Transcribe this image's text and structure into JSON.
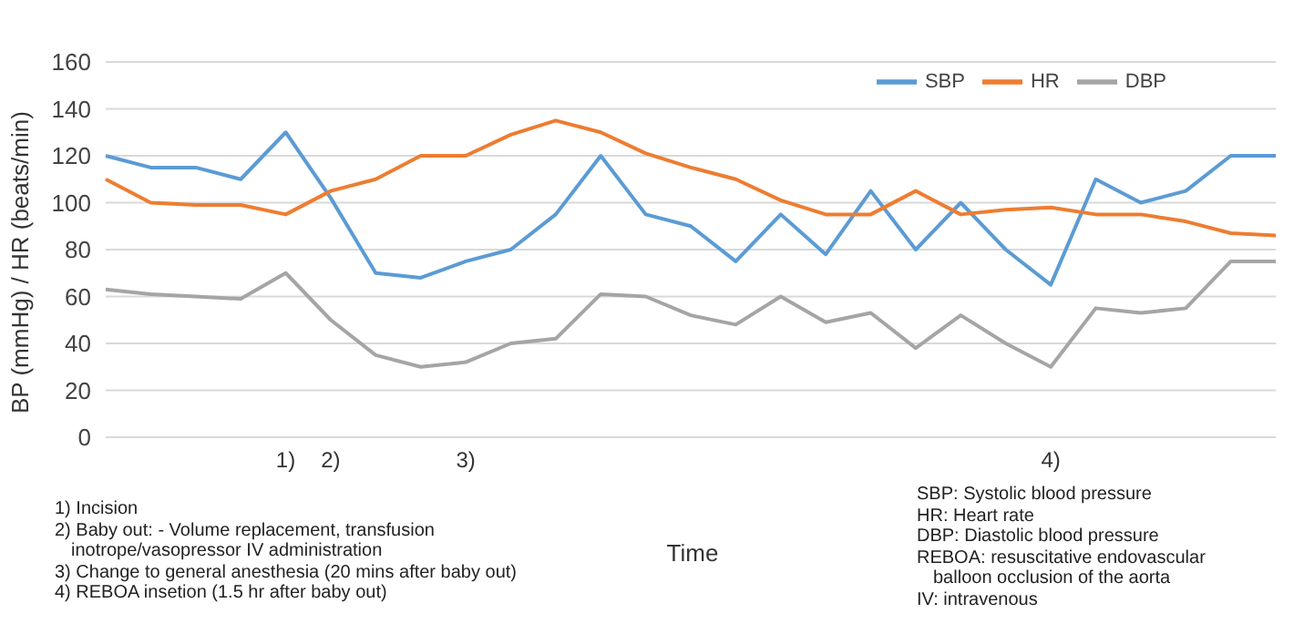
{
  "chart_data": {
    "type": "line",
    "xlabel": "Time",
    "ylabel": "BP (mmHg) / HR (beats/min)",
    "categories": [
      null,
      null,
      null,
      null,
      "1)",
      "2)",
      null,
      null,
      "3)",
      null,
      null,
      null,
      null,
      null,
      null,
      null,
      null,
      null,
      null,
      null,
      null,
      "4)",
      null,
      null,
      null,
      null,
      null
    ],
    "series": [
      {
        "name": "SBP",
        "color": "#5b9bd5",
        "values": [
          120,
          115,
          115,
          110,
          130,
          102,
          70,
          68,
          75,
          80,
          95,
          120,
          95,
          90,
          75,
          95,
          78,
          105,
          80,
          100,
          80,
          65,
          110,
          100,
          105,
          120,
          120
        ]
      },
      {
        "name": "HR",
        "color": "#ed7d31",
        "values": [
          110,
          100,
          99,
          99,
          95,
          105,
          110,
          120,
          120,
          129,
          135,
          130,
          121,
          115,
          110,
          101,
          95,
          95,
          105,
          95,
          97,
          98,
          95,
          95,
          92,
          87,
          86
        ]
      },
      {
        "name": "DBP",
        "color": "#a5a5a5",
        "values": [
          63,
          61,
          60,
          59,
          70,
          50,
          35,
          30,
          32,
          40,
          42,
          61,
          60,
          52,
          48,
          60,
          49,
          53,
          38,
          52,
          40,
          30,
          55,
          53,
          55,
          75,
          75
        ]
      }
    ],
    "ylim": [
      0,
      160
    ],
    "yticks": [
      0,
      20,
      40,
      60,
      80,
      100,
      120,
      140,
      160
    ],
    "grid": "y",
    "legend": "top right",
    "marker": "none",
    "line_style": "solid",
    "annotations": [
      "1) Incision",
      "2) Baby out: - Volume replacement, transfusion inotrope/vasopressor IV administration",
      "3) Change to general anesthesia (20 mins after baby out)",
      "4) REBOA insetion (1.5 hr after baby out)",
      "SBP: Systolic blood pressure",
      "HR: Heart rate",
      "DBP: Diastolic blood pressure",
      "REBOA: resuscitative endovascular balloon occlusion of the aorta",
      "IV: intravenous"
    ]
  }
}
